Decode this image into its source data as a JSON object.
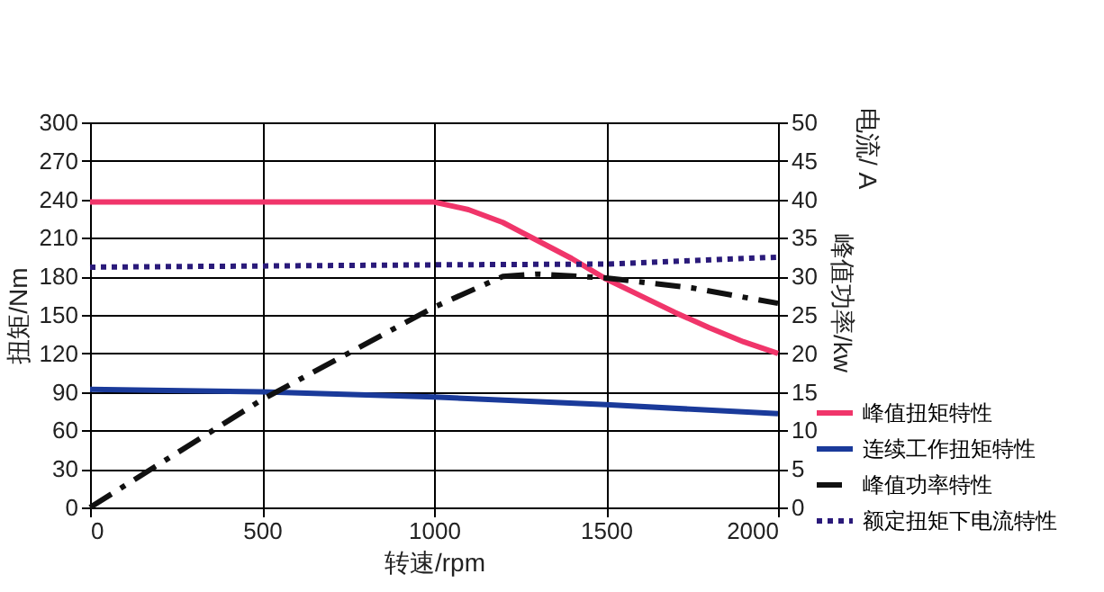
{
  "chart_data": {
    "type": "line",
    "xlabel": "转速/rpm",
    "ylabel": "扭矩/Nm",
    "y2label": "峰值功率/kw",
    "annotations": [
      "电流/ A"
    ],
    "xlim": [
      0,
      2000
    ],
    "xticks": [
      0,
      500,
      1000,
      1500,
      2000
    ],
    "ylim": [
      0,
      300
    ],
    "yticks": [
      0,
      30,
      60,
      90,
      120,
      150,
      180,
      210,
      240,
      270,
      300
    ],
    "y2lim": [
      0,
      50
    ],
    "y2ticks": [
      0,
      5,
      10,
      15,
      20,
      25,
      30,
      35,
      40,
      45,
      50
    ],
    "grid": true,
    "legend": "bottom right",
    "series": [
      {
        "name": "峰值扭矩特性",
        "color": "#f0356a",
        "line_style": "solid",
        "x": [
          0,
          250,
          500,
          750,
          1000,
          1100,
          1200,
          1300,
          1400,
          1500,
          1600,
          1700,
          1800,
          1900,
          2000
        ],
        "values": [
          238,
          238,
          238,
          238,
          238,
          232,
          222,
          208,
          194,
          178,
          165,
          152,
          140,
          129,
          120
        ]
      },
      {
        "name": "连续工作扭矩特性",
        "color": "#1a3a9a",
        "line_style": "solid",
        "x": [
          0,
          500,
          1000,
          1500,
          2000
        ],
        "values": [
          92,
          90,
          86,
          80,
          73
        ]
      },
      {
        "name": "峰值功率特性",
        "color": "#111111",
        "line_style": "dashed",
        "axis": "y2",
        "x": [
          0,
          500,
          1000,
          1200,
          1300,
          1500,
          1750,
          2000
        ],
        "values": [
          0,
          14,
          26,
          30,
          30.3,
          29.8,
          28.5,
          26.5
        ]
      },
      {
        "name": "额定扭矩下电流特性",
        "color": "#2a1a7a",
        "line_style": "dotted",
        "axis": "y2",
        "x": [
          0,
          1000,
          1500,
          2000
        ],
        "values": [
          31.2,
          31.5,
          31.6,
          32.5
        ]
      }
    ]
  }
}
